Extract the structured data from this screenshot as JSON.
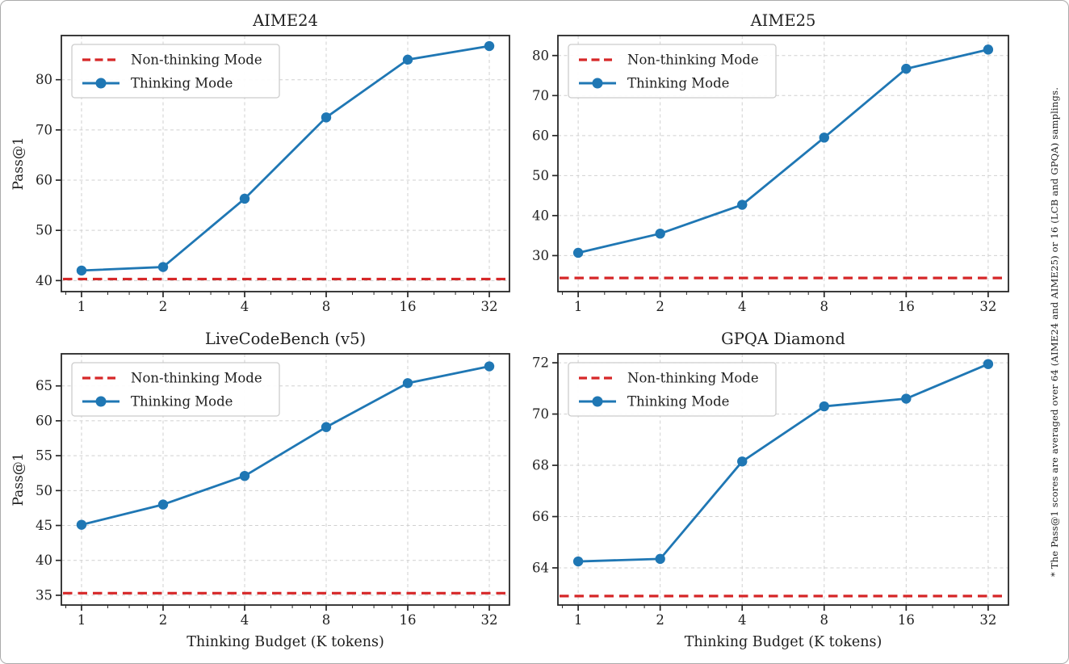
{
  "figure": {
    "footnote": "* The Pass@1 scores are averaged over 64 (AIME24 and AIME25) or 16 (LCB and GPQA) samplings.",
    "legend": {
      "non_thinking_label": "Non-thinking Mode",
      "thinking_label": "Thinking Mode"
    },
    "axis": {
      "xlabel": "Thinking Budget (K tokens)",
      "ylabel": "Pass@1"
    },
    "colors": {
      "thinking_line": "#1f77b4",
      "non_thinking_line": "#d62728",
      "grid": "#d0d0d0",
      "spine": "#262626",
      "text": "#1f1f1f"
    }
  },
  "chart_data": [
    {
      "type": "line",
      "title": "AIME24",
      "xscale": "log2",
      "x": [
        1,
        2,
        4,
        8,
        16,
        32
      ],
      "xticklabels": [
        "1",
        "2",
        "4",
        "8",
        "16",
        "32"
      ],
      "ylabel": "Pass@1",
      "xlabel": null,
      "yticks": [
        40,
        50,
        60,
        70,
        80
      ],
      "ylim": [
        37.8,
        88.8
      ],
      "series": [
        {
          "name": "Thinking Mode",
          "style": "solid-marker",
          "values": [
            42.0,
            42.7,
            56.3,
            72.5,
            84.0,
            86.7
          ]
        },
        {
          "name": "Non-thinking Mode",
          "style": "dashed-baseline",
          "baseline": 40.3
        }
      ]
    },
    {
      "type": "line",
      "title": "AIME25",
      "xscale": "log2",
      "x": [
        1,
        2,
        4,
        8,
        16,
        32
      ],
      "xticklabels": [
        "1",
        "2",
        "4",
        "8",
        "16",
        "32"
      ],
      "ylabel": null,
      "xlabel": null,
      "yticks": [
        30,
        40,
        50,
        60,
        70,
        80
      ],
      "ylim": [
        21.0,
        85.0
      ],
      "series": [
        {
          "name": "Thinking Mode",
          "style": "solid-marker",
          "values": [
            30.7,
            35.5,
            42.7,
            59.5,
            76.7,
            81.5
          ]
        },
        {
          "name": "Non-thinking Mode",
          "style": "dashed-baseline",
          "baseline": 24.4
        }
      ]
    },
    {
      "type": "line",
      "title": "LiveCodeBench (v5)",
      "xscale": "log2",
      "x": [
        1,
        2,
        4,
        8,
        16,
        32
      ],
      "xticklabels": [
        "1",
        "2",
        "4",
        "8",
        "16",
        "32"
      ],
      "ylabel": "Pass@1",
      "xlabel": "Thinking Budget (K tokens)",
      "yticks": [
        35,
        40,
        45,
        50,
        55,
        60,
        65
      ],
      "ylim": [
        33.6,
        69.6
      ],
      "series": [
        {
          "name": "Thinking Mode",
          "style": "solid-marker",
          "values": [
            45.1,
            48.0,
            52.1,
            59.1,
            65.4,
            67.8
          ]
        },
        {
          "name": "Non-thinking Mode",
          "style": "dashed-baseline",
          "baseline": 35.3
        }
      ]
    },
    {
      "type": "line",
      "title": "GPQA Diamond",
      "xscale": "log2",
      "x": [
        1,
        2,
        4,
        8,
        16,
        32
      ],
      "xticklabels": [
        "1",
        "2",
        "4",
        "8",
        "16",
        "32"
      ],
      "ylabel": null,
      "xlabel": "Thinking Budget (K tokens)",
      "yticks": [
        64,
        66,
        68,
        70,
        72
      ],
      "ylim": [
        62.55,
        72.35
      ],
      "series": [
        {
          "name": "Thinking Mode",
          "style": "solid-marker",
          "values": [
            64.25,
            64.35,
            68.15,
            70.3,
            70.6,
            71.95
          ]
        },
        {
          "name": "Non-thinking Mode",
          "style": "dashed-baseline",
          "baseline": 62.9
        }
      ]
    }
  ]
}
